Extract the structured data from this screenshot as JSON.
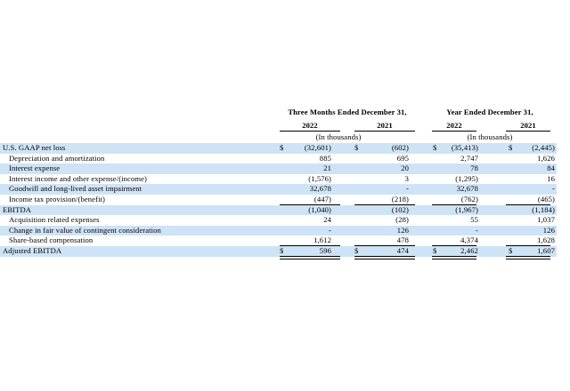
{
  "header": {
    "period_title_left": "Three Months Ended December 31,",
    "period_title_right": "Year Ended December 31,",
    "years": [
      "2022",
      "2021",
      "2022",
      "2021"
    ],
    "unit_left": "(In thousands)",
    "unit_right": "(In thousands)"
  },
  "currency_symbol": "$",
  "rows": [
    {
      "label": "U.S. GAAP net loss",
      "values": [
        "(32,601)",
        "(602)",
        "(35,413)",
        "(2,445)"
      ],
      "dollar": true
    },
    {
      "label": "Depreciation and amortization",
      "values": [
        "885",
        "695",
        "2,747",
        "1,626"
      ]
    },
    {
      "label": "Interest expense",
      "values": [
        "21",
        "20",
        "78",
        "84"
      ]
    },
    {
      "label": "Interest income and other expense/(income)",
      "values": [
        "(1,576)",
        "3",
        "(1,295)",
        "16"
      ]
    },
    {
      "label": "Goodwill and long-lived asset impairment",
      "values": [
        "32,678",
        "-",
        "32,678",
        "-"
      ]
    },
    {
      "label": "Income tax provision/(benefit)",
      "values": [
        "(447)",
        "(218)",
        "(762)",
        "(465)"
      ]
    },
    {
      "label": "EBITDA",
      "values": [
        "(1,040)",
        "(102)",
        "(1,967)",
        "(1,184)"
      ]
    },
    {
      "label": "Acquisition related expenses",
      "values": [
        "24",
        "(28)",
        "55",
        "1,037"
      ]
    },
    {
      "label": "Change in fair value of contingent consideration",
      "values": [
        "-",
        "126",
        "-",
        "126"
      ]
    },
    {
      "label": "Share-based compensation",
      "values": [
        "1,612",
        "478",
        "4,374",
        "1,628"
      ]
    },
    {
      "label": "Adjusted EBITDA",
      "values": [
        "596",
        "474",
        "2,462",
        "1,607"
      ],
      "dollar": true
    }
  ]
}
